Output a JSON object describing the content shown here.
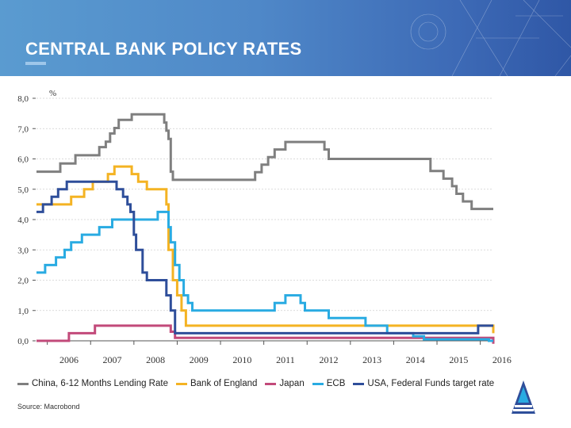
{
  "header": {
    "title": "CENTRAL BANK POLICY RATES"
  },
  "source": "Source: Macrobond",
  "colors": {
    "china": "#7f7f7f",
    "boe": "#f4b323",
    "japan": "#c24a7a",
    "ecb": "#29abe2",
    "usa": "#2e4e9a"
  },
  "chart_data": {
    "type": "line",
    "title": "CENTRAL BANK POLICY RATES",
    "ylabel": "%",
    "xlabel": "",
    "ylim": [
      0,
      8
    ],
    "xlim": [
      2005.75,
      2016.3
    ],
    "grid": true,
    "y_ticks": [
      "8,0",
      "7,0",
      "6,0",
      "5,0",
      "4,0",
      "3,0",
      "2,0",
      "1,0",
      "0,0"
    ],
    "x_ticks": [
      "2006",
      "2007",
      "2008",
      "2009",
      "2010",
      "2011",
      "2012",
      "2013",
      "2014",
      "2015",
      "2016"
    ],
    "series": [
      {
        "name": "China, 6-12 Months Lending Rate",
        "color": "#7f7f7f",
        "points": [
          [
            2005.75,
            5.58
          ],
          [
            2006.3,
            5.85
          ],
          [
            2006.65,
            6.12
          ],
          [
            2007.2,
            6.39
          ],
          [
            2007.35,
            6.57
          ],
          [
            2007.45,
            6.84
          ],
          [
            2007.55,
            7.02
          ],
          [
            2007.65,
            7.29
          ],
          [
            2007.95,
            7.47
          ],
          [
            2008.7,
            7.2
          ],
          [
            2008.75,
            6.93
          ],
          [
            2008.8,
            6.66
          ],
          [
            2008.85,
            5.58
          ],
          [
            2008.9,
            5.31
          ],
          [
            2010.8,
            5.56
          ],
          [
            2010.95,
            5.81
          ],
          [
            2011.1,
            6.06
          ],
          [
            2011.25,
            6.31
          ],
          [
            2011.5,
            6.56
          ],
          [
            2012.4,
            6.31
          ],
          [
            2012.5,
            6.0
          ],
          [
            2014.85,
            5.6
          ],
          [
            2015.15,
            5.35
          ],
          [
            2015.35,
            5.1
          ],
          [
            2015.45,
            4.85
          ],
          [
            2015.6,
            4.6
          ],
          [
            2015.8,
            4.35
          ],
          [
            2016.3,
            4.35
          ]
        ]
      },
      {
        "name": "Bank of England",
        "color": "#f4b323",
        "points": [
          [
            2005.75,
            4.5
          ],
          [
            2006.55,
            4.75
          ],
          [
            2006.85,
            5.0
          ],
          [
            2007.05,
            5.25
          ],
          [
            2007.4,
            5.5
          ],
          [
            2007.55,
            5.75
          ],
          [
            2007.95,
            5.5
          ],
          [
            2008.1,
            5.25
          ],
          [
            2008.3,
            5.0
          ],
          [
            2008.75,
            4.5
          ],
          [
            2008.8,
            3.0
          ],
          [
            2008.9,
            2.0
          ],
          [
            2009.0,
            1.5
          ],
          [
            2009.1,
            1.0
          ],
          [
            2009.2,
            0.5
          ],
          [
            2016.25,
            0.5
          ],
          [
            2016.3,
            0.25
          ]
        ]
      },
      {
        "name": "Japan",
        "color": "#c24a7a",
        "points": [
          [
            2005.75,
            0.0
          ],
          [
            2006.5,
            0.25
          ],
          [
            2007.1,
            0.5
          ],
          [
            2008.85,
            0.3
          ],
          [
            2008.95,
            0.1
          ],
          [
            2016.1,
            0.1
          ],
          [
            2016.3,
            -0.1
          ]
        ]
      },
      {
        "name": "ECB",
        "color": "#29abe2",
        "points": [
          [
            2005.75,
            2.25
          ],
          [
            2005.95,
            2.5
          ],
          [
            2006.2,
            2.75
          ],
          [
            2006.4,
            3.0
          ],
          [
            2006.55,
            3.25
          ],
          [
            2006.8,
            3.5
          ],
          [
            2007.2,
            3.75
          ],
          [
            2007.5,
            4.0
          ],
          [
            2008.55,
            4.25
          ],
          [
            2008.8,
            3.75
          ],
          [
            2008.85,
            3.25
          ],
          [
            2008.95,
            2.5
          ],
          [
            2009.05,
            2.0
          ],
          [
            2009.15,
            1.5
          ],
          [
            2009.25,
            1.25
          ],
          [
            2009.35,
            1.0
          ],
          [
            2011.25,
            1.25
          ],
          [
            2011.5,
            1.5
          ],
          [
            2011.85,
            1.25
          ],
          [
            2011.95,
            1.0
          ],
          [
            2012.5,
            0.75
          ],
          [
            2013.35,
            0.5
          ],
          [
            2013.85,
            0.25
          ],
          [
            2014.45,
            0.15
          ],
          [
            2014.7,
            0.05
          ],
          [
            2016.2,
            0.0
          ],
          [
            2016.3,
            0.0
          ]
        ]
      },
      {
        "name": "USA, Federal Funds target rate",
        "color": "#2e4e9a",
        "points": [
          [
            2005.75,
            4.25
          ],
          [
            2005.9,
            4.5
          ],
          [
            2006.1,
            4.75
          ],
          [
            2006.25,
            5.0
          ],
          [
            2006.45,
            5.25
          ],
          [
            2007.6,
            5.0
          ],
          [
            2007.75,
            4.75
          ],
          [
            2007.85,
            4.5
          ],
          [
            2007.92,
            4.25
          ],
          [
            2008.0,
            3.5
          ],
          [
            2008.05,
            3.0
          ],
          [
            2008.2,
            2.25
          ],
          [
            2008.3,
            2.0
          ],
          [
            2008.75,
            1.5
          ],
          [
            2008.85,
            1.0
          ],
          [
            2008.95,
            0.25
          ],
          [
            2015.95,
            0.5
          ],
          [
            2016.3,
            0.5
          ]
        ]
      }
    ]
  }
}
